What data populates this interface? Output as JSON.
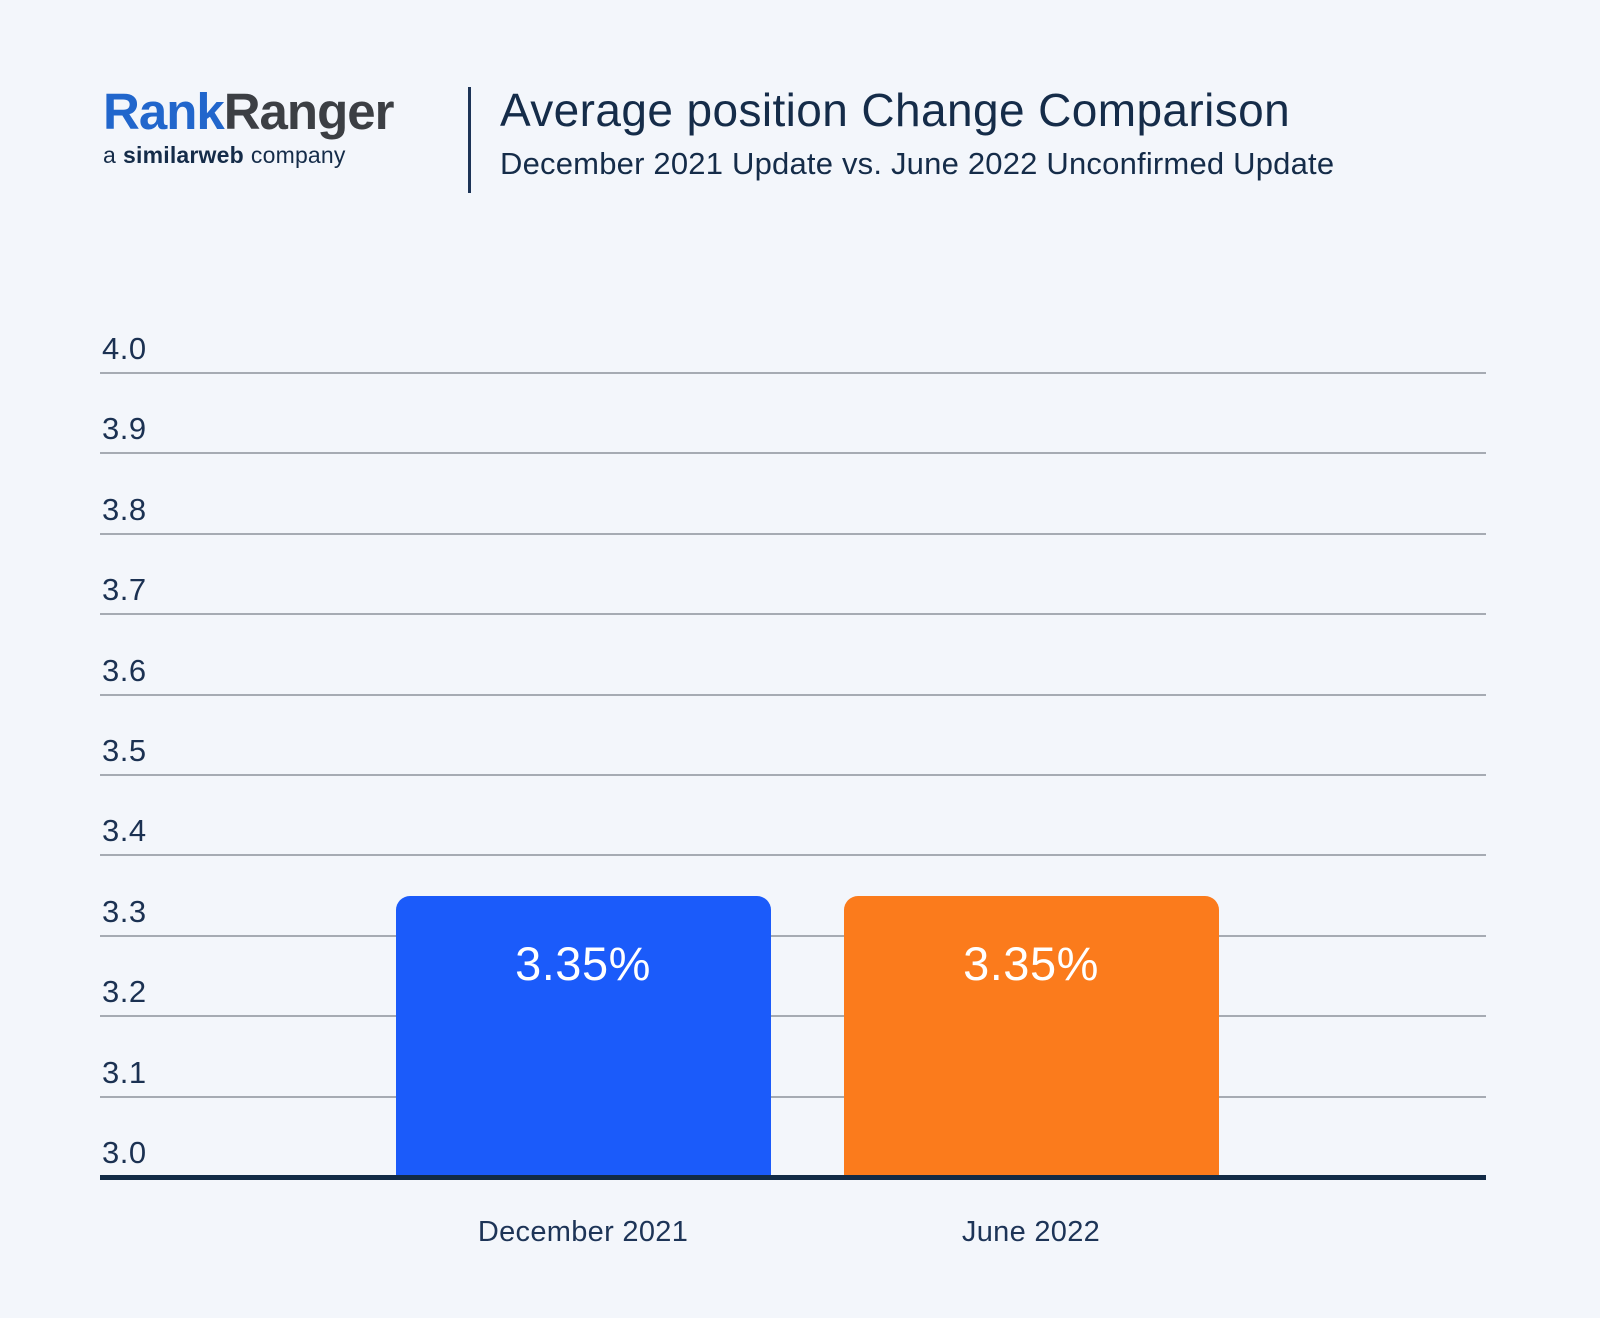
{
  "page": {
    "background_color": "#f3f6fb"
  },
  "header": {
    "logo": {
      "brand_part1": "Rank",
      "brand_part2": "Ranger",
      "tagline_prefix": "a",
      "tagline_brand": "similarweb",
      "tagline_suffix": "company",
      "brand_blue": "#2166cc",
      "brand_dark": "#3c3f44",
      "tagline_color": "#152c49"
    },
    "title": "Average position Change Comparison",
    "subtitle": "December 2021 Update vs. June 2022 Unconfirmed Update",
    "title_color": "#152c49"
  },
  "chart_data": {
    "type": "bar",
    "title": "Average position Change Comparison",
    "subtitle": "December 2021 Update vs. June 2022 Unconfirmed Update",
    "categories": [
      "December 2021",
      "June 2022"
    ],
    "values": [
      3.35,
      3.35
    ],
    "bar_labels": [
      "3.35%",
      "3.35%"
    ],
    "bar_colors": [
      "#1b5bfa",
      "#fb7b1c"
    ],
    "ylim": [
      3.0,
      4.0
    ],
    "ytick_step": 0.1,
    "ytick_labels": [
      "3.0",
      "3.1",
      "3.2",
      "3.3",
      "3.4",
      "3.5",
      "3.6",
      "3.7",
      "3.8",
      "3.9",
      "4.0"
    ],
    "xlabel": "",
    "ylabel": "",
    "grid": true,
    "legend": false,
    "text_color": "#1b3152",
    "gridline_color": "#a6abb3",
    "axis_line_color": "#122b46"
  }
}
